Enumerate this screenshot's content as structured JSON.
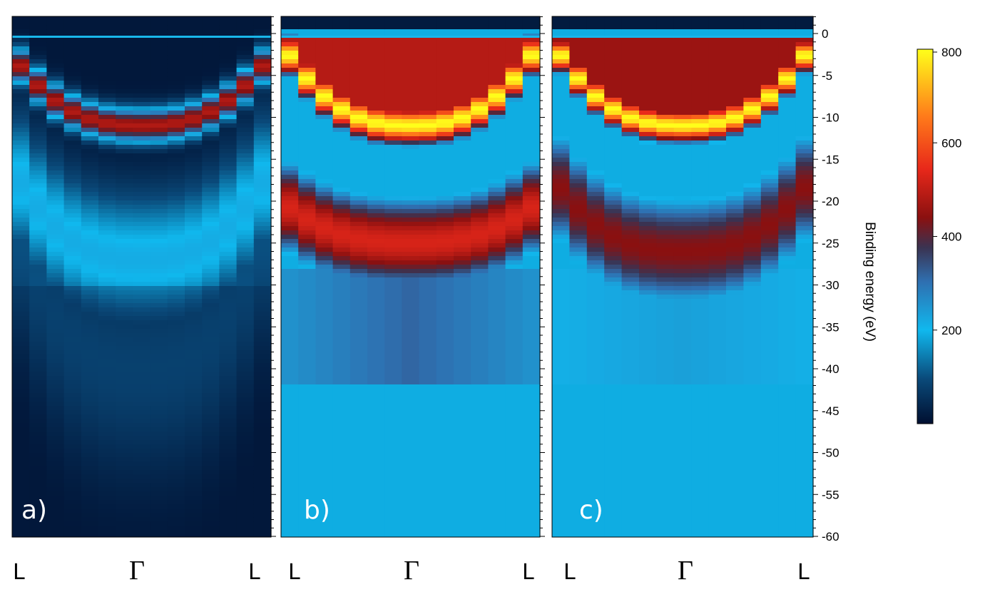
{
  "chart_data": {
    "type": "heatmap",
    "description_scale": "intensity",
    "y_axis": {
      "label": "Binding energy (eV)",
      "range": [
        -60,
        2
      ],
      "ticks": [
        0,
        -5,
        -10,
        -15,
        -20,
        -25,
        -30,
        -35,
        -40,
        -45,
        -50,
        -55,
        -60
      ],
      "tick_labels": [
        "0",
        "-5",
        "-10",
        "-15",
        "-20",
        "-25",
        "-30",
        "-35",
        "-40",
        "-45",
        "-50",
        "-55",
        "-60"
      ]
    },
    "colorbar": {
      "range": [
        0,
        800
      ],
      "ticks": [
        200,
        400,
        600,
        800
      ],
      "tick_labels": [
        "200",
        "400",
        "600",
        "800"
      ],
      "colors": [
        "#000f30",
        "#0a4a7a",
        "#10b8ee",
        "#2f3f66",
        "#8a1010",
        "#e8281a",
        "#ff7a1a",
        "#ffff1a"
      ]
    },
    "panels": [
      {
        "label": "a)",
        "k_labels": [
          "L",
          "Γ",
          "L"
        ],
        "columns": 15,
        "background": "#001235",
        "bands": [
          {
            "name": "main",
            "apex_energy": -11,
            "edge_energy": -2.5,
            "peak": 460,
            "width_eV": 1.4
          },
          {
            "name": "secondary",
            "apex_energy": -27,
            "edge_energy": -16,
            "peak": 200,
            "width_eV": 5.5
          },
          {
            "name": "tail",
            "apex_energy": -40,
            "edge_energy": -22,
            "peak": 90,
            "width_eV": 9
          }
        ]
      },
      {
        "label": "b)",
        "k_labels": [
          "L",
          "Γ",
          "L"
        ],
        "columns": 15,
        "background": "#12b4ec",
        "bands": [
          {
            "name": "main",
            "apex_energy": -11,
            "edge_energy": -1,
            "peak": 800,
            "width_eV": 1.6
          },
          {
            "name": "fill-top",
            "region": [
              -0.5,
              -11
            ],
            "level": 480
          },
          {
            "name": "lower",
            "apex_energy": -25,
            "edge_energy": -20,
            "peak": 520,
            "width_eV": 4
          },
          {
            "name": "deep",
            "region": [
              -28,
              -42
            ],
            "level": 300
          }
        ]
      },
      {
        "label": "c)",
        "k_labels": [
          "L",
          "Γ",
          "L"
        ],
        "columns": 15,
        "background": "#12bcf2",
        "bands": [
          {
            "name": "main",
            "apex_energy": -11,
            "edge_energy": -1,
            "peak": 800,
            "width_eV": 1.4
          },
          {
            "name": "fill-top",
            "region": [
              -0.5,
              -11
            ],
            "level": 450
          },
          {
            "name": "lower",
            "apex_energy": -26,
            "edge_energy": -17,
            "peak": 430,
            "width_eV": 5
          },
          {
            "name": "deep",
            "region": [
              -28,
              -42
            ],
            "level": 230
          }
        ]
      }
    ]
  }
}
